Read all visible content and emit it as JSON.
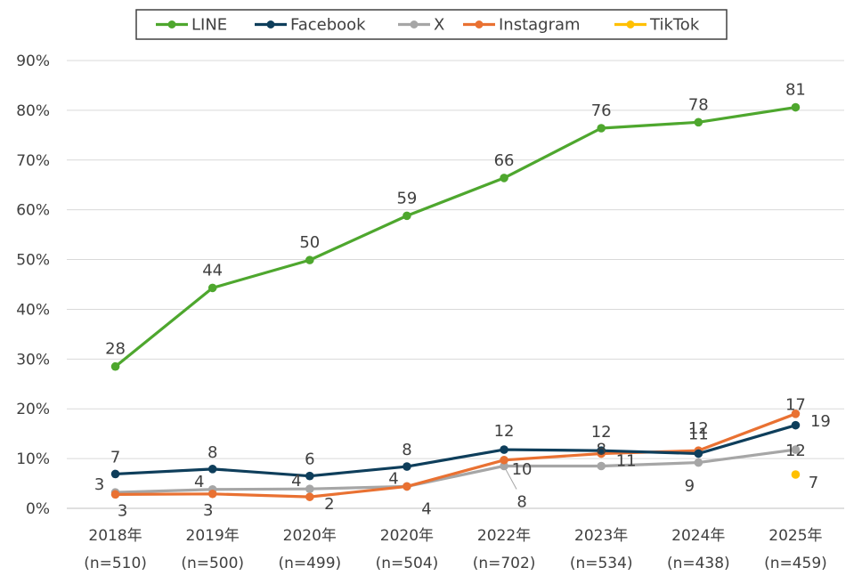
{
  "chart_data": {
    "type": "line",
    "title": "",
    "xlabel": "",
    "ylabel": "",
    "ylim": [
      0,
      90
    ],
    "y_tick_step": 10,
    "y_tick_labels": [
      "0%",
      "10%",
      "20%",
      "30%",
      "40%",
      "50%",
      "60%",
      "70%",
      "80%",
      "90%"
    ],
    "grid": true,
    "legend_position": "top",
    "categories": [
      {
        "year": "2018年",
        "n": "(n=510)"
      },
      {
        "year": "2019年",
        "n": "(n=500)"
      },
      {
        "year": "2020年",
        "n": "(n=499)"
      },
      {
        "year": "2020年",
        "n": "(n=504)"
      },
      {
        "year": "2022年",
        "n": "(n=702)"
      },
      {
        "year": "2023年",
        "n": "(n=534)"
      },
      {
        "year": "2024年",
        "n": "(n=438)"
      },
      {
        "year": "2025年",
        "n": "(n=459)"
      }
    ],
    "series": [
      {
        "name": "LINE",
        "color": "#4ea72e",
        "values": [
          28.5,
          44.3,
          49.9,
          58.8,
          66.4,
          76.4,
          77.6,
          80.6
        ],
        "labels": [
          "28",
          "44",
          "50",
          "59",
          "66",
          "76",
          "78",
          "81"
        ],
        "label_position": "above"
      },
      {
        "name": "Facebook",
        "color": "#0e3e5b",
        "values": [
          6.9,
          7.9,
          6.5,
          8.4,
          11.8,
          11.6,
          11.0,
          16.7
        ],
        "labels": [
          "7",
          "8",
          "6",
          "8",
          "12",
          "12",
          "11",
          "17"
        ],
        "label_position": "above"
      },
      {
        "name": "X",
        "color": "#a6a6a6",
        "values": [
          3.2,
          3.8,
          3.9,
          4.4,
          8.5,
          8.5,
          9.2,
          11.8
        ],
        "labels": [
          "3",
          "4",
          "4",
          "4",
          "8",
          "8",
          "9",
          "12"
        ],
        "label_position": "mixed"
      },
      {
        "name": "Instagram",
        "color": "#e97132",
        "values": [
          2.8,
          2.9,
          2.3,
          4.4,
          9.7,
          11.0,
          11.6,
          19.0
        ],
        "labels": [
          "3",
          "3",
          "2",
          "4",
          "10",
          "11",
          "12",
          "19"
        ],
        "label_position": "mixed"
      },
      {
        "name": "TikTok",
        "color": "#ffc000",
        "values": [
          null,
          null,
          null,
          null,
          null,
          null,
          null,
          6.8
        ],
        "labels": [
          null,
          null,
          null,
          null,
          null,
          null,
          null,
          "7"
        ],
        "label_position": "right"
      }
    ]
  }
}
